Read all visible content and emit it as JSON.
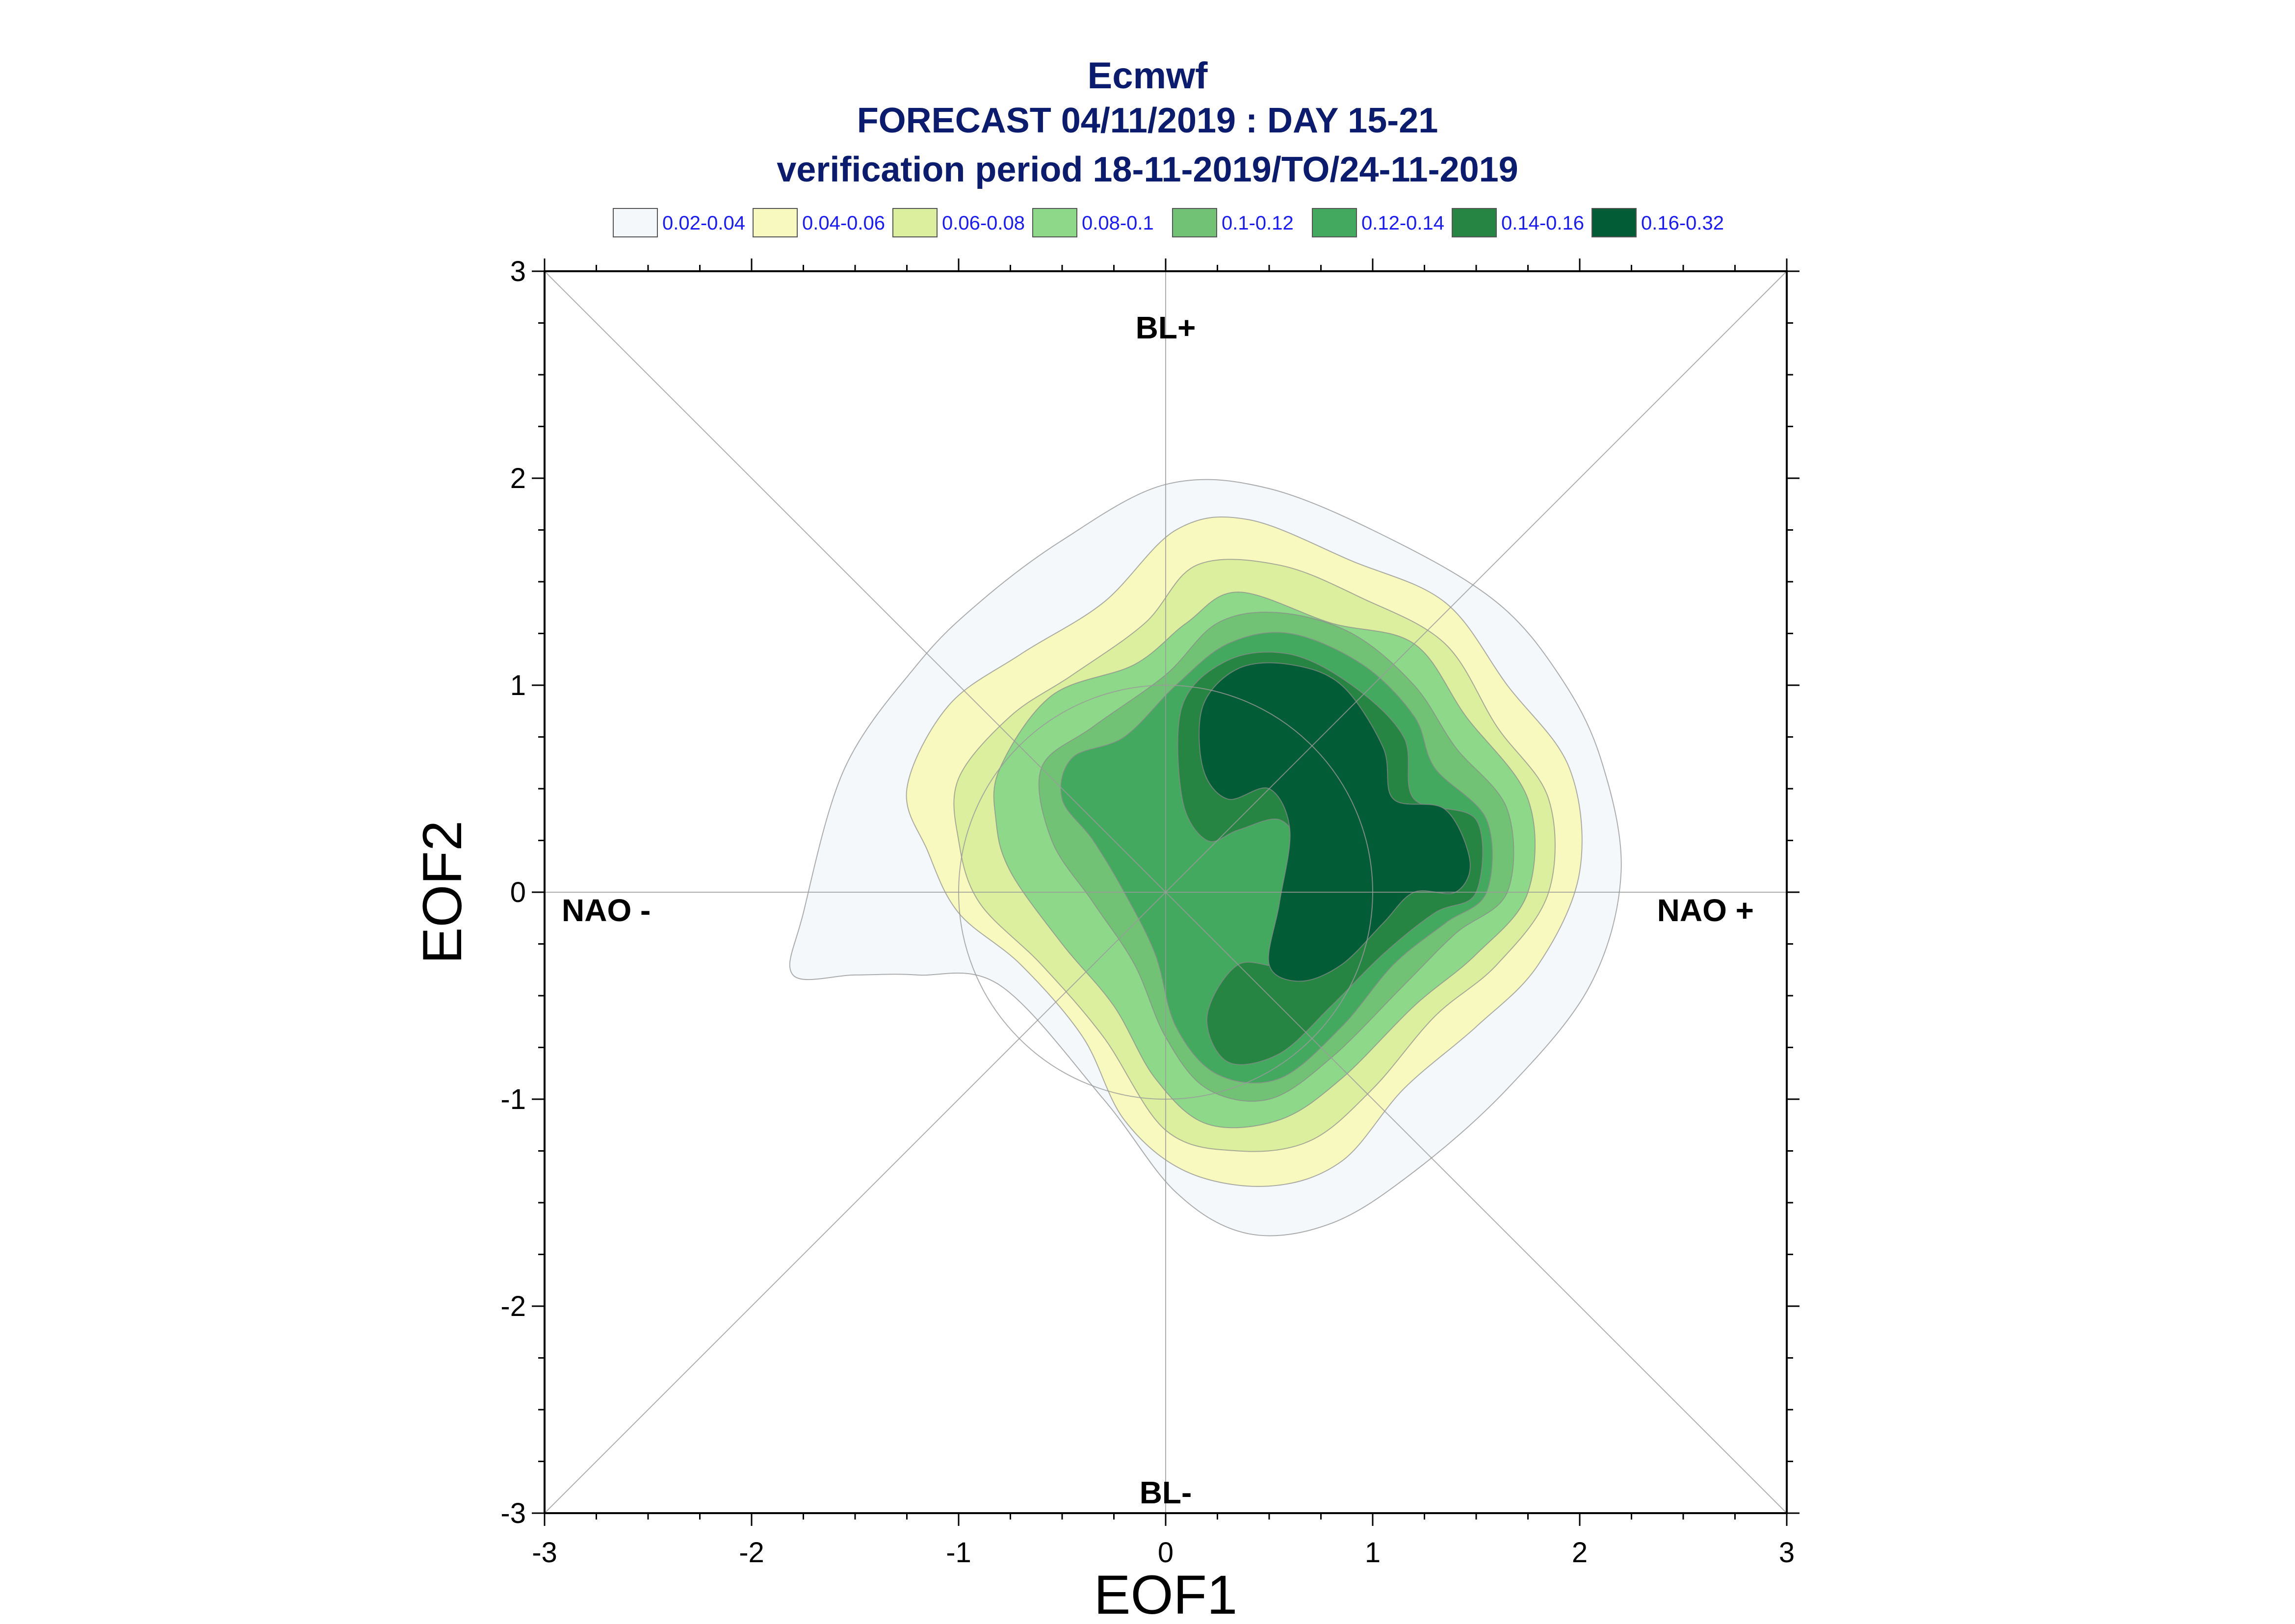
{
  "chart_data": {
    "type": "contour",
    "title": "Ecmwf",
    "subtitle_lines": [
      "FORECAST 04/11/2019 : DAY 15-21",
      "verification period 18-11-2019/TO/24-11-2019"
    ],
    "xlabel": "EOF1",
    "ylabel": "EOF2",
    "xlim": [
      -3,
      3
    ],
    "ylim": [
      -3,
      3
    ],
    "xticks": [
      "-3",
      "-2",
      "-1",
      "0",
      "1",
      "2",
      "3"
    ],
    "yticks": [
      "-3",
      "-2",
      "-1",
      "0",
      "1",
      "2",
      "3"
    ],
    "region_labels": {
      "top": "BL+",
      "bottom": "BL-",
      "left": "NAO -",
      "right": "NAO +"
    },
    "reference_circle_radius": 1,
    "legend": [
      {
        "label": "0.02-0.04",
        "color": "#f4f8fb"
      },
      {
        "label": "0.04-0.06",
        "color": "#f7f9be"
      },
      {
        "label": "0.06-0.08",
        "color": "#dcef9f"
      },
      {
        "label": "0.08-0.1",
        "color": "#8ed88a"
      },
      {
        "label": "0.1-0.12",
        "color": "#72c275"
      },
      {
        "label": "0.12-0.14",
        "color": "#42a95e"
      },
      {
        "label": "0.14-0.16",
        "color": "#268543"
      },
      {
        "label": "0.16-0.32",
        "color": "#025c36"
      }
    ],
    "contours": [
      {
        "level": "0.02-0.04",
        "points": [
          [
            -1.8,
            -0.4
          ],
          [
            -1.75,
            -0.1
          ],
          [
            -1.55,
            0.6
          ],
          [
            -1.2,
            1.1
          ],
          [
            -0.9,
            1.4
          ],
          [
            -0.5,
            1.7
          ],
          [
            0,
            1.97
          ],
          [
            0.5,
            1.95
          ],
          [
            1.1,
            1.7
          ],
          [
            1.6,
            1.4
          ],
          [
            1.9,
            1.05
          ],
          [
            2.1,
            0.65
          ],
          [
            2.2,
            0.1
          ],
          [
            2.05,
            -0.45
          ],
          [
            1.65,
            -0.95
          ],
          [
            1.2,
            -1.35
          ],
          [
            0.8,
            -1.6
          ],
          [
            0.4,
            -1.65
          ],
          [
            0.05,
            -1.45
          ],
          [
            -0.3,
            -1.0
          ],
          [
            -0.8,
            -0.45
          ],
          [
            -1.2,
            -0.4
          ],
          [
            -1.5,
            -0.4
          ]
        ]
      },
      {
        "level": "0.04-0.06",
        "points": [
          [
            -1.25,
            0.5
          ],
          [
            -1.05,
            0.9
          ],
          [
            -0.7,
            1.15
          ],
          [
            -0.3,
            1.4
          ],
          [
            0.05,
            1.75
          ],
          [
            0.4,
            1.8
          ],
          [
            0.9,
            1.6
          ],
          [
            1.35,
            1.4
          ],
          [
            1.65,
            1.0
          ],
          [
            1.95,
            0.6
          ],
          [
            2.0,
            0.1
          ],
          [
            1.8,
            -0.35
          ],
          [
            1.5,
            -0.65
          ],
          [
            1.15,
            -0.95
          ],
          [
            0.85,
            -1.3
          ],
          [
            0.5,
            -1.42
          ],
          [
            0.1,
            -1.35
          ],
          [
            -0.2,
            -1.1
          ],
          [
            -0.4,
            -0.7
          ],
          [
            -0.7,
            -0.35
          ],
          [
            -1.0,
            -0.1
          ],
          [
            -1.15,
            0.2
          ]
        ]
      },
      {
        "level": "0.06-0.08",
        "points": [
          [
            -1.0,
            0.55
          ],
          [
            -0.75,
            0.85
          ],
          [
            -0.45,
            1.05
          ],
          [
            -0.1,
            1.3
          ],
          [
            0.15,
            1.58
          ],
          [
            0.55,
            1.58
          ],
          [
            0.95,
            1.42
          ],
          [
            1.35,
            1.2
          ],
          [
            1.6,
            0.8
          ],
          [
            1.85,
            0.45
          ],
          [
            1.85,
            0.0
          ],
          [
            1.6,
            -0.35
          ],
          [
            1.3,
            -0.6
          ],
          [
            1.0,
            -0.95
          ],
          [
            0.7,
            -1.2
          ],
          [
            0.35,
            -1.25
          ],
          [
            0.0,
            -1.15
          ],
          [
            -0.3,
            -0.7
          ],
          [
            -0.6,
            -0.35
          ],
          [
            -0.9,
            -0.05
          ],
          [
            -1.0,
            0.25
          ]
        ]
      },
      {
        "level": "0.08-0.1",
        "points": [
          [
            -0.8,
            0.6
          ],
          [
            -0.55,
            0.95
          ],
          [
            -0.15,
            1.1
          ],
          [
            0.1,
            1.3
          ],
          [
            0.35,
            1.45
          ],
          [
            0.8,
            1.3
          ],
          [
            1.2,
            1.2
          ],
          [
            1.45,
            0.85
          ],
          [
            1.75,
            0.45
          ],
          [
            1.75,
            0.0
          ],
          [
            1.5,
            -0.3
          ],
          [
            1.2,
            -0.55
          ],
          [
            0.85,
            -0.9
          ],
          [
            0.55,
            -1.1
          ],
          [
            0.2,
            -1.12
          ],
          [
            -0.05,
            -0.9
          ],
          [
            -0.25,
            -0.55
          ],
          [
            -0.5,
            -0.25
          ],
          [
            -0.75,
            0.1
          ],
          [
            -0.82,
            0.35
          ]
        ]
      },
      {
        "level": "0.1-0.12",
        "points": [
          [
            -0.6,
            0.6
          ],
          [
            -0.35,
            0.8
          ],
          [
            0.0,
            1.05
          ],
          [
            0.25,
            1.3
          ],
          [
            0.55,
            1.35
          ],
          [
            0.9,
            1.25
          ],
          [
            1.2,
            1.0
          ],
          [
            1.4,
            0.7
          ],
          [
            1.65,
            0.4
          ],
          [
            1.65,
            0.0
          ],
          [
            1.4,
            -0.2
          ],
          [
            1.15,
            -0.45
          ],
          [
            0.8,
            -0.8
          ],
          [
            0.5,
            -1.0
          ],
          [
            0.2,
            -0.95
          ],
          [
            0.0,
            -0.7
          ],
          [
            -0.15,
            -0.35
          ],
          [
            -0.35,
            -0.05
          ],
          [
            -0.55,
            0.25
          ]
        ]
      },
      {
        "level": "0.12-0.14",
        "points": [
          [
            -0.45,
            0.65
          ],
          [
            -0.2,
            0.75
          ],
          [
            0.05,
            1.0
          ],
          [
            0.3,
            1.2
          ],
          [
            0.6,
            1.25
          ],
          [
            0.95,
            1.1
          ],
          [
            1.2,
            0.85
          ],
          [
            1.3,
            0.6
          ],
          [
            1.55,
            0.35
          ],
          [
            1.55,
            0.0
          ],
          [
            1.35,
            -0.15
          ],
          [
            1.1,
            -0.35
          ],
          [
            0.85,
            -0.65
          ],
          [
            0.55,
            -0.9
          ],
          [
            0.25,
            -0.88
          ],
          [
            0.05,
            -0.65
          ],
          [
            -0.05,
            -0.3
          ],
          [
            -0.2,
            0.0
          ],
          [
            -0.35,
            0.25
          ],
          [
            -0.5,
            0.45
          ]
        ]
      },
      {
        "level": "0.14-0.16",
        "points": [
          [
            0.08,
            0.9
          ],
          [
            0.3,
            1.12
          ],
          [
            0.6,
            1.15
          ],
          [
            0.9,
            1.0
          ],
          [
            1.15,
            0.75
          ],
          [
            1.2,
            0.45
          ],
          [
            1.5,
            0.35
          ],
          [
            1.5,
            0.0
          ],
          [
            1.3,
            -0.1
          ],
          [
            1.05,
            -0.3
          ],
          [
            0.8,
            -0.55
          ],
          [
            0.55,
            -0.78
          ],
          [
            0.3,
            -0.82
          ],
          [
            0.2,
            -0.6
          ],
          [
            0.35,
            -0.35
          ],
          [
            0.6,
            -0.35
          ],
          [
            0.7,
            -0.1
          ],
          [
            0.65,
            0.2
          ],
          [
            0.55,
            0.35
          ],
          [
            0.35,
            0.3
          ],
          [
            0.2,
            0.25
          ],
          [
            0.08,
            0.45
          ]
        ]
      },
      {
        "level": "0.16-0.32",
        "points": [
          [
            0.18,
            0.9
          ],
          [
            0.35,
            1.08
          ],
          [
            0.6,
            1.1
          ],
          [
            0.85,
            1.0
          ],
          [
            1.05,
            0.7
          ],
          [
            1.1,
            0.45
          ],
          [
            1.35,
            0.4
          ],
          [
            1.47,
            0.15
          ],
          [
            1.4,
            0.0
          ],
          [
            1.2,
            0.0
          ],
          [
            1.05,
            -0.15
          ],
          [
            0.85,
            -0.35
          ],
          [
            0.65,
            -0.43
          ],
          [
            0.5,
            -0.35
          ],
          [
            0.55,
            -0.05
          ],
          [
            0.6,
            0.3
          ],
          [
            0.5,
            0.5
          ],
          [
            0.3,
            0.45
          ],
          [
            0.18,
            0.6
          ]
        ]
      }
    ]
  }
}
